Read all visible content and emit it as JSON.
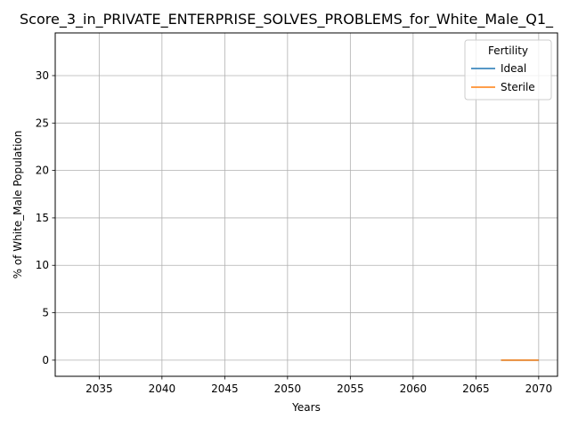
{
  "chart_data": {
    "type": "line",
    "title": "Score_3_in_PRIVATE_ENTERPRISE_SOLVES_PROBLEMS_for_White_Male_Q1_",
    "xlabel": "Years",
    "ylabel": "% of White_Male Population",
    "xlim": [
      2031.5,
      2071.5
    ],
    "ylim": [
      -1.7,
      34.5
    ],
    "xticks": [
      2035,
      2040,
      2045,
      2050,
      2055,
      2060,
      2065,
      2070
    ],
    "yticks": [
      0,
      5,
      10,
      15,
      20,
      25,
      30
    ],
    "grid": true,
    "legend": {
      "title": "Fertility",
      "placement": "top-right"
    },
    "series": [
      {
        "name": "Ideal",
        "color": "#1f77b4",
        "x": [
          2067,
          2068,
          2069,
          2070
        ],
        "y": [
          0,
          0,
          0,
          0
        ]
      },
      {
        "name": "Sterile",
        "color": "#ff7f0e",
        "x": [
          2067,
          2068,
          2069,
          2070
        ],
        "y": [
          0,
          0,
          0,
          0
        ]
      }
    ]
  }
}
